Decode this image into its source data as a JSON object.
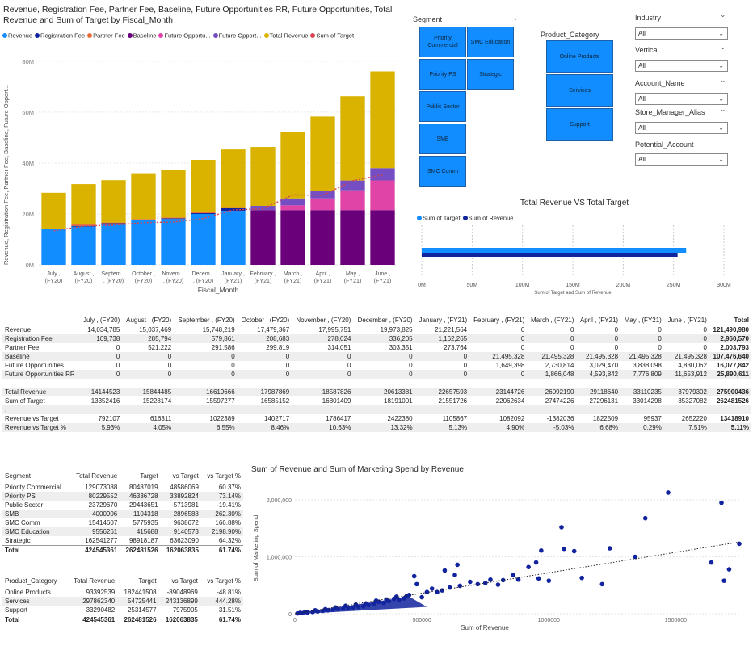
{
  "main_chart": {
    "title": "Revenue, Registration Fee, Partner Fee, Baseline, Future Opportunities RR, Future Opportunities, Total Revenue and Sum of Target by Fiscal_Month",
    "legend": [
      {
        "label": "Revenue",
        "color": "#118dff"
      },
      {
        "label": "Registration Fee",
        "color": "#12239e"
      },
      {
        "label": "Partner Fee",
        "color": "#e66c37"
      },
      {
        "label": "Baseline",
        "color": "#6b007b"
      },
      {
        "label": "Future Opportu...",
        "color": "#e044a7"
      },
      {
        "label": "Future Opport...",
        "color": "#744ec2"
      },
      {
        "label": "Total Revenue",
        "color": "#d9b300"
      },
      {
        "label": "Sum of Target",
        "color": "#d64550"
      }
    ],
    "ylabel": "Revenue, Registration Fee, Partner Fee, Baseline, Future Opport...",
    "xlabel": "Fiscal_Month",
    "yticks": [
      "0M",
      "20M",
      "40M",
      "60M",
      "80M"
    ],
    "months": [
      [
        "July ,",
        "(FY20)"
      ],
      [
        "August ,",
        "(FY20)"
      ],
      [
        "Septem...",
        ", (FY20)"
      ],
      [
        "October ,",
        "(FY20)"
      ],
      [
        "Novem...",
        ", (FY20)"
      ],
      [
        "Decem...",
        ", (FY20)"
      ],
      [
        "January ,",
        "(FY21)"
      ],
      [
        "February ,",
        "(FY21)"
      ],
      [
        "March ,",
        "(FY21)"
      ],
      [
        "April ,",
        "(FY21)"
      ],
      [
        "May ,",
        "(FY21)"
      ],
      [
        "June ,",
        "(FY21)"
      ]
    ]
  },
  "slicers": {
    "segment": {
      "title": "Segment",
      "tiles": [
        "Priority Commercial",
        "SMC Education",
        "Priority PS",
        "Strategic",
        "Public Sector",
        "SMB",
        "SMC Comm"
      ]
    },
    "product_category": {
      "title": "Product_Category",
      "tiles": [
        "Online Products",
        "Services",
        "Support"
      ]
    },
    "industry": {
      "title": "Industry",
      "value": "All"
    },
    "vertical": {
      "title": "Vertical",
      "value": "All"
    },
    "account_name": {
      "title": "Account_Name",
      "value": "All"
    },
    "store_manager": {
      "title": "Store_Manager_Alias",
      "value": "All"
    },
    "potential_account": {
      "title": "Potential_Account",
      "value": "All"
    }
  },
  "bar_chart": {
    "title": "Total Revenue VS Total Target",
    "legend": [
      {
        "label": "Sum of Target",
        "color": "#118dff"
      },
      {
        "label": "Sum of Revenue",
        "color": "#12239e"
      }
    ],
    "xticks": [
      "0M",
      "50M",
      "100M",
      "150M",
      "200M",
      "250M",
      "300M"
    ],
    "xlabel": "Sum of Target and Sum of Revenue"
  },
  "matrix": {
    "columns": [
      "July , (FY20)",
      "August , (FY20)",
      "September , (FY20)",
      "October , (FY20)",
      "November , (FY20)",
      "December , (FY20)",
      "January , (FY21)",
      "February , (FY21)",
      "March , (FY21)",
      "April , (FY21)",
      "May , (FY21)",
      "June , (FY21)",
      "Total"
    ],
    "rows": [
      {
        "label": "Revenue",
        "values": [
          "14,034,785",
          "15,037,469",
          "15,748,219",
          "17,479,367",
          "17,995,751",
          "19,973,825",
          "21,221,564",
          "0",
          "0",
          "0",
          "0",
          "0",
          "121,490,980"
        ]
      },
      {
        "label": "Registration Fee",
        "values": [
          "109,738",
          "285,794",
          "579,861",
          "208,683",
          "278,024",
          "336,205",
          "1,162,265",
          "0",
          "0",
          "0",
          "0",
          "0",
          "2,960,570"
        ]
      },
      {
        "label": "Partner Fee",
        "values": [
          "0",
          "521,222",
          "291,586",
          "299,819",
          "314,051",
          "303,351",
          "273,764",
          "0",
          "0",
          "0",
          "0",
          "0",
          "2,003,793"
        ]
      },
      {
        "label": "Baseline",
        "values": [
          "0",
          "0",
          "0",
          "0",
          "0",
          "0",
          "0",
          "21,495,328",
          "21,495,328",
          "21,495,328",
          "21,495,328",
          "21,495,328",
          "107,476,640"
        ]
      },
      {
        "label": "Future Opportunities",
        "values": [
          "0",
          "0",
          "0",
          "0",
          "0",
          "0",
          "0",
          "1,649,398",
          "2,730,814",
          "3,029,470",
          "3,838,098",
          "4,830,062",
          "16,077,842"
        ]
      },
      {
        "label": "Future Opportunities RR",
        "values": [
          "0",
          "0",
          "0",
          "0",
          "0",
          "0",
          "0",
          "0",
          "1,866,048",
          "4,593,842",
          "7,776,809",
          "11,653,912",
          "25,890,611"
        ]
      },
      {
        "label": "",
        "values": [
          "",
          "",
          "",
          "",
          "",
          "",
          "",
          "",
          "",
          "",
          "",
          "",
          ""
        ]
      },
      {
        "label": "Total Revenue",
        "values": [
          "14144523",
          "15844485",
          "16619666",
          "17987869",
          "18587826",
          "20613381",
          "22657593",
          "23144726",
          "26092190",
          "29118640",
          "33110235",
          "37979302",
          "275900436"
        ]
      },
      {
        "label": "Sum of Target",
        "values": [
          "13352416",
          "15228174",
          "15597277",
          "16585152",
          "16801409",
          "18191001",
          "21551726",
          "22062634",
          "27474226",
          "27296131",
          "33014298",
          "35327082",
          "262481526"
        ]
      },
      {
        "label": ".",
        "values": [
          "",
          "",
          "",
          "",
          "",
          "",
          "",
          "",
          "",
          "",
          "",
          "",
          ""
        ]
      },
      {
        "label": "Revenue vs Target",
        "values": [
          "792107",
          "616311",
          "1022389",
          "1402717",
          "1786417",
          "2422380",
          "1105867",
          "1082092",
          "-1382036",
          "1822509",
          "95937",
          "2652220",
          "13418910"
        ]
      },
      {
        "label": "Revenue vs Target %",
        "values": [
          "5.93%",
          "4.05%",
          "6.55%",
          "8.46%",
          "10.63%",
          "13.32%",
          "5.13%",
          "4.90%",
          "-5.03%",
          "6.68%",
          "0.29%",
          "7.51%",
          "5.11%"
        ]
      }
    ]
  },
  "segment_table": {
    "headers": [
      "Segment",
      "Total Revenue",
      "Target",
      "vs Target",
      "vs Target %"
    ],
    "rows": [
      [
        "Priority Commercial",
        "129073088",
        "80487019",
        "48586069",
        "60.37%"
      ],
      [
        "Priority PS",
        "80229552",
        "46336728",
        "33892824",
        "73.14%"
      ],
      [
        "Public Sector",
        "23729670",
        "29443651",
        "-5713981",
        "-19.41%"
      ],
      [
        "SMB",
        "4000906",
        "1104318",
        "2896588",
        "262.30%"
      ],
      [
        "SMC Comm",
        "15414607",
        "5775935",
        "9638672",
        "166.88%"
      ],
      [
        "SMC Education",
        "9556261",
        "415688",
        "9140573",
        "2198.90%"
      ],
      [
        "Strategic",
        "162541277",
        "98918187",
        "63623090",
        "64.32%"
      ]
    ],
    "total": [
      "Total",
      "424545361",
      "262481526",
      "162063835",
      "61.74%"
    ]
  },
  "product_table": {
    "headers": [
      "Product_Category",
      "Total Revenue",
      "Target",
      "vs Target",
      "vs Target %"
    ],
    "rows": [
      [
        "Online Products",
        "93392539",
        "182441508",
        "-89048969",
        "-48.81%"
      ],
      [
        "Services",
        "297862340",
        "54725441",
        "243136899",
        "444.28%"
      ],
      [
        "Support",
        "33290482",
        "25314577",
        "7975905",
        "31.51%"
      ]
    ],
    "total": [
      "Total",
      "424545361",
      "262481526",
      "162063835",
      "61.74%"
    ]
  },
  "scatter": {
    "title": "Sum of Revenue and Sum of Marketing Spend by Revenue",
    "ylabel": "Sum of Marketing Spend",
    "xlabel": "Sum of Revenue",
    "yticks": [
      "0",
      "1,000,000",
      "2,000,000"
    ],
    "xticks": [
      "0",
      "500000",
      "1000000",
      "1500000"
    ]
  },
  "chart_data": [
    {
      "type": "bar",
      "categories": [
        "July , (FY20)",
        "August , (FY20)",
        "September , (FY20)",
        "October , (FY20)",
        "November , (FY20)",
        "December , (FY20)",
        "January , (FY21)",
        "February , (FY21)",
        "March , (FY21)",
        "April , (FY21)",
        "May , (FY21)",
        "June , (FY21)"
      ],
      "stacked": true,
      "ylim": [
        0,
        85000000
      ],
      "series": [
        {
          "name": "Revenue",
          "color": "#118dff",
          "values": [
            14034785,
            15037469,
            15748219,
            17479367,
            17995751,
            19973825,
            21221564,
            0,
            0,
            0,
            0,
            0
          ]
        },
        {
          "name": "Registration Fee",
          "color": "#12239e",
          "values": [
            109738,
            285794,
            579861,
            208683,
            278024,
            336205,
            1162265,
            0,
            0,
            0,
            0,
            0
          ]
        },
        {
          "name": "Partner Fee",
          "color": "#e66c37",
          "values": [
            0,
            521222,
            291586,
            299819,
            314051,
            303351,
            273764,
            0,
            0,
            0,
            0,
            0
          ]
        },
        {
          "name": "Baseline",
          "color": "#6b007b",
          "values": [
            0,
            0,
            0,
            0,
            0,
            0,
            0,
            21495328,
            21495328,
            21495328,
            21495328,
            21495328
          ]
        },
        {
          "name": "Future Opportunities RR",
          "color": "#e044a7",
          "values": [
            0,
            0,
            0,
            0,
            0,
            0,
            0,
            0,
            1866048,
            4593842,
            7776809,
            11653912
          ]
        },
        {
          "name": "Future Opportunities",
          "color": "#744ec2",
          "values": [
            0,
            0,
            0,
            0,
            0,
            0,
            0,
            1649398,
            2730814,
            3029470,
            3838098,
            4830062
          ]
        },
        {
          "name": "Total Revenue",
          "color": "#d9b300",
          "values": [
            14144523,
            15844485,
            16619666,
            17987869,
            18587826,
            20613381,
            22657593,
            23144726,
            26092190,
            29118640,
            33110235,
            37979302
          ]
        }
      ],
      "line": {
        "name": "Sum of Target",
        "color": "#d64550",
        "values": [
          13352416,
          15228174,
          15597277,
          16585152,
          16801409,
          18191001,
          21551726,
          22062634,
          27474226,
          27296131,
          33014298,
          35327082
        ]
      }
    },
    {
      "type": "bar",
      "orientation": "horizontal",
      "xlim": [
        0,
        300000000
      ],
      "series": [
        {
          "name": "Sum of Target",
          "color": "#118dff",
          "values": [
            262481526
          ]
        },
        {
          "name": "Sum of Revenue",
          "color": "#12239e",
          "values": [
            254000000
          ]
        }
      ]
    },
    {
      "type": "scatter",
      "xlim": [
        0,
        1750000
      ],
      "ylim": [
        0,
        2300000
      ],
      "color": "#12239e",
      "trendline": {
        "x": [
          0,
          1750000
        ],
        "y": [
          0,
          1260000
        ]
      },
      "points": [
        [
          1750000,
          1230000
        ],
        [
          1680000,
          1950000
        ],
        [
          1470000,
          2130000
        ],
        [
          1710000,
          780000
        ],
        [
          1690000,
          580000
        ],
        [
          1640000,
          900000
        ],
        [
          1380000,
          1680000
        ],
        [
          1340000,
          1000000
        ],
        [
          1240000,
          1150000
        ],
        [
          1210000,
          520000
        ],
        [
          1100000,
          1100000
        ],
        [
          1060000,
          1140000
        ],
        [
          1050000,
          1520000
        ],
        [
          1130000,
          630000
        ],
        [
          1000000,
          580000
        ],
        [
          970000,
          1110000
        ],
        [
          950000,
          900000
        ],
        [
          960000,
          620000
        ],
        [
          920000,
          820000
        ],
        [
          880000,
          600000
        ],
        [
          860000,
          680000
        ],
        [
          820000,
          590000
        ],
        [
          800000,
          510000
        ],
        [
          770000,
          600000
        ],
        [
          750000,
          540000
        ],
        [
          720000,
          520000
        ],
        [
          690000,
          560000
        ],
        [
          650000,
          490000
        ],
        [
          640000,
          860000
        ],
        [
          630000,
          680000
        ],
        [
          610000,
          460000
        ],
        [
          590000,
          760000
        ],
        [
          580000,
          410000
        ],
        [
          560000,
          380000
        ],
        [
          540000,
          440000
        ],
        [
          520000,
          380000
        ],
        [
          500000,
          290000
        ],
        [
          480000,
          520000
        ],
        [
          470000,
          660000
        ],
        [
          450000,
          330000
        ],
        [
          430000,
          270000
        ],
        [
          410000,
          240000
        ],
        [
          390000,
          260000
        ],
        [
          370000,
          220000
        ],
        [
          350000,
          190000
        ],
        [
          330000,
          210000
        ],
        [
          310000,
          170000
        ],
        [
          290000,
          150000
        ],
        [
          270000,
          130000
        ],
        [
          250000,
          120000
        ],
        [
          230000,
          110000
        ],
        [
          210000,
          100000
        ],
        [
          190000,
          90000
        ],
        [
          170000,
          80000
        ],
        [
          150000,
          70000
        ],
        [
          130000,
          60000
        ],
        [
          110000,
          50000
        ],
        [
          90000,
          40000
        ],
        [
          70000,
          30000
        ],
        [
          50000,
          20000
        ],
        [
          30000,
          10000
        ],
        [
          10000,
          5000
        ],
        [
          440000,
          310000
        ],
        [
          400000,
          300000
        ],
        [
          360000,
          250000
        ],
        [
          320000,
          230000
        ],
        [
          280000,
          180000
        ],
        [
          240000,
          160000
        ],
        [
          200000,
          140000
        ],
        [
          160000,
          110000
        ],
        [
          120000,
          80000
        ],
        [
          80000,
          60000
        ],
        [
          40000,
          30000
        ],
        [
          20000,
          15000
        ]
      ]
    }
  ]
}
